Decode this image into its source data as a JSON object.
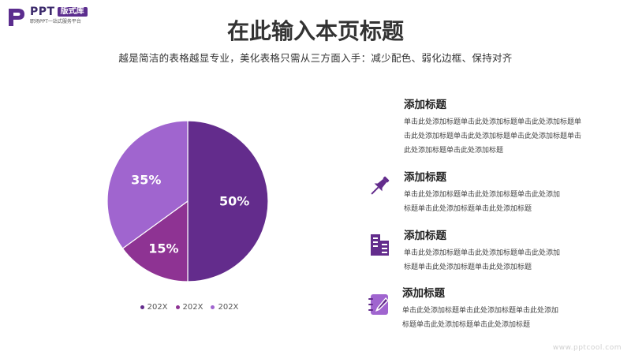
{
  "logo": {
    "name": "PPT",
    "badge": "版式库",
    "tagline": "职场PPT一站式服务平台"
  },
  "title": "在此输入本页标题",
  "subtitle": "越是简洁的表格越显专业，美化表格只需从三方面入手：减少配色、弱化边框、保持对齐",
  "chart_data": {
    "type": "pie",
    "title": "",
    "slices": [
      {
        "label": "202X",
        "value": 50,
        "display": "50%",
        "color": "#632c8c"
      },
      {
        "label": "202X",
        "value": 15,
        "display": "15%",
        "color": "#8e3393"
      },
      {
        "label": "202X",
        "value": 35,
        "display": "35%",
        "color": "#a065cf"
      }
    ],
    "start_angle_deg": 0,
    "direction": "clockwise",
    "legend_position": "bottom"
  },
  "items": [
    {
      "title": "添加标题",
      "body": "单击此处添加标题单击此处添加标题单击此处添加标题单\n击此处添加标题单击此处添加标题单击此处添加标题单击\n此处添加标题单击此处添加标题",
      "icon": "none"
    },
    {
      "title": "添加标题",
      "body": "单击此处添加标题单击此处添加标题单击此处添加\n标题单击此处添加标题单击此处添加标题",
      "icon": "pin-icon"
    },
    {
      "title": "添加标题",
      "body": "单击此处添加标题单击此处添加标题单击此处添加\n标题单击此处添加标题单击此处添加标题",
      "icon": "building-icon"
    },
    {
      "title": "添加标题",
      "body": "单击此处添加标题单击此处添加标题单击此处添加\n标题单击此处添加标题单击此处添加标题",
      "icon": "notebook-pen-icon"
    }
  ],
  "accent_color": "#632c8c",
  "watermark": "www.pptcool.com"
}
